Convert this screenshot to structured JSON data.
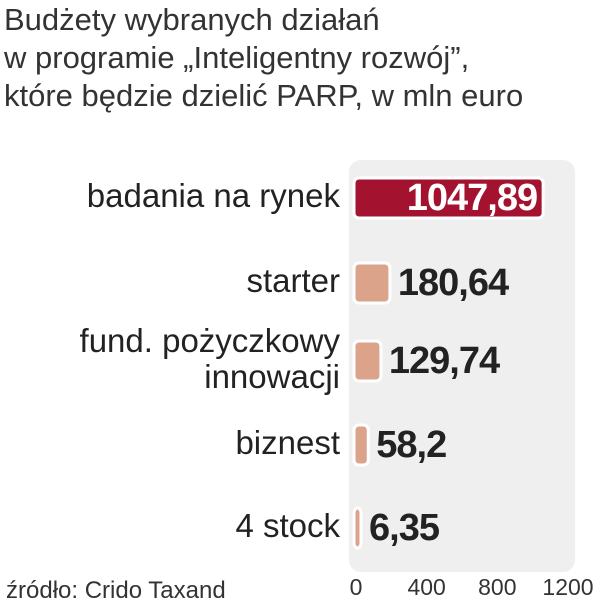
{
  "chart_data": {
    "type": "bar",
    "orientation": "horizontal",
    "title": "Budżety wybranych działań\nw programie „Inteligentny rozwój”,\nktóre będzie dzielić PARP, w mln euro",
    "categories": [
      "badania na rynek",
      "starter",
      "fund. pożyczkowy\ninnowacji",
      "biznest",
      "4 stock"
    ],
    "values": [
      1047.89,
      180.64,
      129.74,
      58.2,
      6.35
    ],
    "value_labels": [
      "1047,89",
      "180,64",
      "129,74",
      "58,2",
      "6,35"
    ],
    "colors": [
      "#a3122f",
      "#dca38b",
      "#dca38b",
      "#dca38b",
      "#dca38b"
    ],
    "xlim": [
      0,
      1200
    ],
    "xticks": [
      0,
      400,
      800,
      1200
    ],
    "source": "źródło: Crido Taxand"
  }
}
